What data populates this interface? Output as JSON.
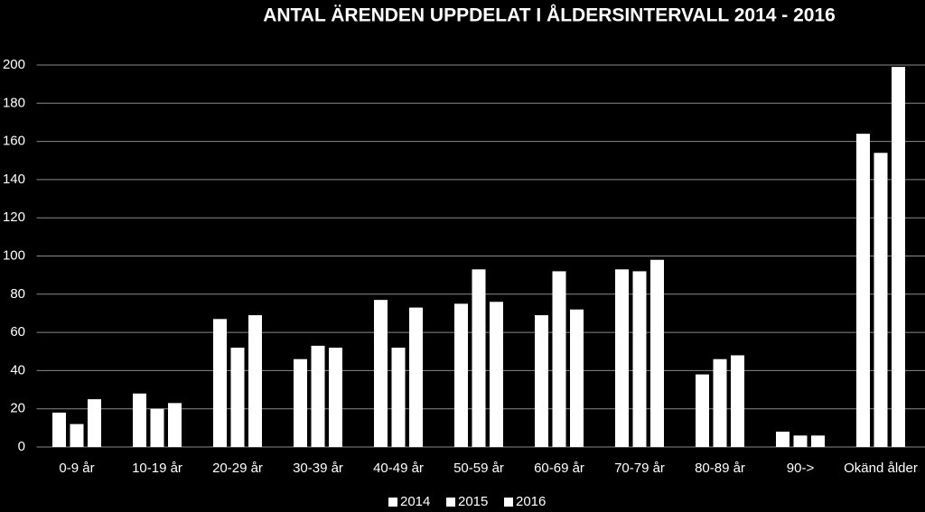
{
  "chart_data": {
    "type": "bar",
    "title": "ANTAL ÄRENDEN UPPDELAT I ÅLDERSINTERVALL 2014 - 2016",
    "categories": [
      "0-9 år",
      "10-19 år",
      "20-29 år",
      "30-39 år",
      "40-49 år",
      "50-59 år",
      "60-69 år",
      "70-79 år",
      "80-89 år",
      "90->",
      "Okänd ålder"
    ],
    "series": [
      {
        "name": "2014",
        "color": "#ffffff",
        "values": [
          18,
          28,
          67,
          46,
          77,
          75,
          69,
          93,
          38,
          8,
          164
        ]
      },
      {
        "name": "2015",
        "color": "#ffffff",
        "values": [
          12,
          20,
          52,
          53,
          52,
          93,
          92,
          92,
          46,
          6,
          154
        ]
      },
      {
        "name": "2016",
        "color": "#ffffff",
        "values": [
          25,
          23,
          69,
          52,
          73,
          76,
          72,
          98,
          48,
          6,
          199
        ]
      }
    ],
    "ylim": [
      0,
      200
    ],
    "yticks": [
      0,
      20,
      40,
      60,
      80,
      100,
      120,
      140,
      160,
      180,
      200
    ],
    "grid": true,
    "legend": "bottom"
  }
}
